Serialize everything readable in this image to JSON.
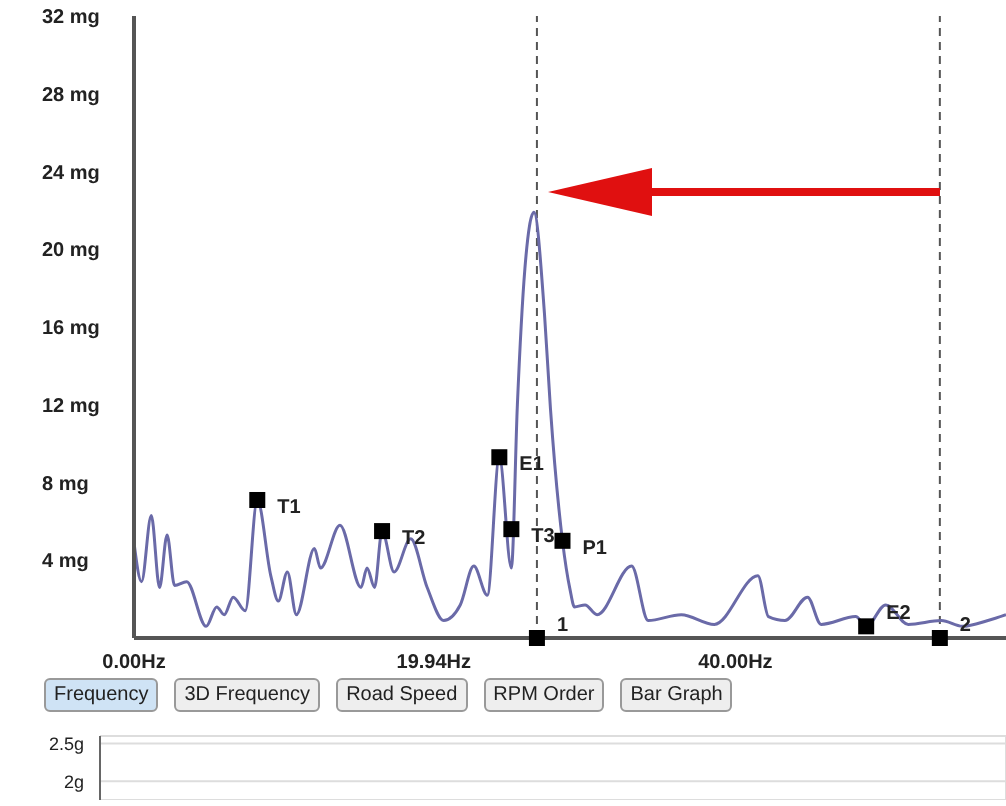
{
  "chart_data": [
    {
      "type": "line",
      "color": "#6a6aa8",
      "marker": "none",
      "legend": false,
      "grid": false,
      "x": [
        0,
        0.5,
        1.15,
        1.7,
        2.2,
        2.7,
        3.5,
        4.8,
        5.5,
        6.0,
        6.6,
        7.4,
        8.2,
        9.1,
        9.6,
        10.2,
        10.8,
        12.0,
        12.4,
        13.7,
        15.1,
        15.5,
        16.0,
        16.5,
        17.3,
        18.4,
        19.5,
        20.6,
        21.7,
        22.6,
        23.5,
        24.3,
        25.1,
        25.5,
        26.0,
        26.6,
        27.3,
        27.7,
        28.5,
        29.0,
        29.3,
        30.0,
        30.8,
        33.1,
        34.2,
        36.4,
        38.6,
        41.5,
        42.2,
        43.3,
        44.8,
        45.7,
        48.0,
        48.7,
        50.0,
        51.5,
        53.7,
        55.1,
        56.8,
        58.0
      ],
      "values": [
        4.9,
        2.9,
        6.3,
        2.6,
        5.3,
        2.7,
        2.9,
        0.6,
        1.6,
        1.2,
        2.1,
        1.4,
        7.1,
        3.2,
        1.9,
        3.4,
        1.2,
        4.6,
        3.6,
        5.8,
        2.6,
        3.6,
        2.6,
        5.5,
        3.4,
        5.1,
        2.6,
        0.9,
        1.7,
        3.7,
        2.2,
        9.3,
        3.6,
        12,
        19,
        21.9,
        16.7,
        11.8,
        5.0,
        2.5,
        1.6,
        1.7,
        1.2,
        3.7,
        0.9,
        1.2,
        0.7,
        3.2,
        1.1,
        0.9,
        2.1,
        0.7,
        1.1,
        0.6,
        1.7,
        0.7,
        0.9,
        0.6,
        0.9,
        1.2
      ],
      "xlim": [
        0,
        58
      ],
      "xticks": [
        {
          "value": 0,
          "label": "0.00Hz"
        },
        {
          "value": 19.94,
          "label": "19.94Hz"
        },
        {
          "value": 40,
          "label": "40.00Hz"
        }
      ],
      "ylim": [
        0,
        32
      ],
      "yticks": [
        {
          "value": 4,
          "label": "4 mg"
        },
        {
          "value": 8,
          "label": "8 mg"
        },
        {
          "value": 12,
          "label": "12 mg"
        },
        {
          "value": 16,
          "label": "16 mg"
        },
        {
          "value": 20,
          "label": "20 mg"
        },
        {
          "value": 24,
          "label": "24 mg"
        },
        {
          "value": 28,
          "label": "28 mg"
        },
        {
          "value": 32,
          "label": "32 mg"
        }
      ],
      "ref_lines": [
        {
          "axis": "x",
          "value": 26.8,
          "line_style": "dashed",
          "color": "#555555"
        },
        {
          "axis": "x",
          "value": 53.6,
          "line_style": "dashed",
          "color": "#555555"
        }
      ],
      "annotations": [
        {
          "text": "T1",
          "x": 8.2,
          "y": 7.1
        },
        {
          "text": "T2",
          "x": 16.5,
          "y": 5.5
        },
        {
          "text": "E1",
          "x": 24.3,
          "y": 9.3
        },
        {
          "text": "T3",
          "x": 25.1,
          "y": 5.6
        },
        {
          "text": "P1",
          "x": 28.5,
          "y": 5.0
        },
        {
          "text": "E2",
          "x": 48.7,
          "y": 0.6
        },
        {
          "text": "1",
          "x": 26.8,
          "y": 0
        },
        {
          "text": "2",
          "x": 53.6,
          "y": 0
        },
        "Frequency",
        "3D Frequency",
        "Road Speed",
        "RPM Order",
        "Bar Graph"
      ]
    },
    {
      "type": "line",
      "categories": [
        null,
        null,
        null,
        null,
        null,
        null,
        null,
        null
      ],
      "values": [
        null,
        null,
        null,
        null,
        null,
        null,
        null,
        null
      ],
      "ylim": [
        1.75,
        2.6
      ],
      "yticks": [
        {
          "value": 2,
          "label": "2g"
        },
        {
          "value": 2.5,
          "label": "2.5g"
        }
      ],
      "grid": true,
      "tick_labels": "y"
    }
  ]
}
